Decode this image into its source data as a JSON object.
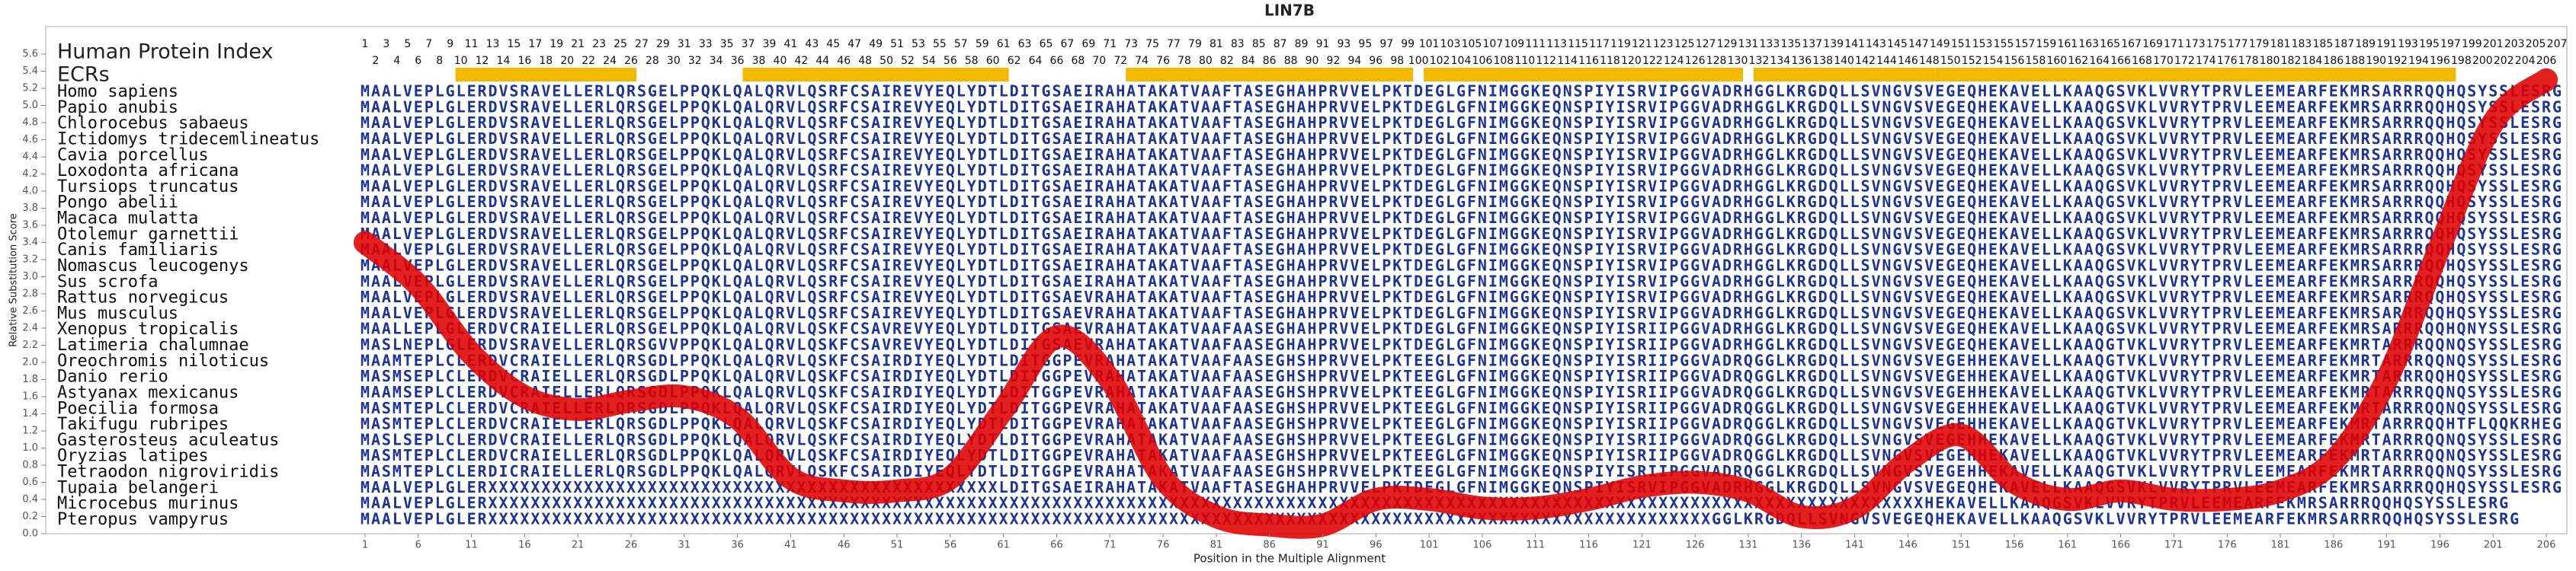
{
  "chart_data": {
    "type": "line",
    "title": "LIN7B",
    "ylabel": "Relative Substitution Score",
    "xlabel": "Position in the Multiple Alignment",
    "index_label": "Human Protein Index",
    "ecr_label": "ECRs",
    "ecr_color": "#f5b800",
    "protein_index": [
      1,
      2,
      3,
      4,
      5,
      6,
      7,
      8,
      9,
      10,
      11,
      12,
      13,
      14,
      15,
      16,
      17,
      18,
      19,
      20,
      21,
      22,
      23,
      24,
      25,
      26,
      27,
      28,
      29,
      30,
      31,
      32,
      33,
      34,
      35,
      36,
      37,
      38,
      39,
      40,
      41,
      42,
      43,
      44,
      45,
      46,
      47,
      48,
      49,
      50,
      51,
      52,
      53,
      54,
      55,
      56,
      57,
      58,
      59,
      60,
      61,
      62,
      63,
      64,
      65,
      66,
      67,
      68,
      69,
      70,
      71,
      72,
      73,
      74,
      75,
      76,
      77,
      78,
      79,
      80,
      81,
      82,
      83,
      84,
      85,
      86,
      87,
      88,
      89,
      90,
      91,
      92,
      93,
      94,
      95,
      96,
      97,
      98,
      99,
      100,
      101,
      102,
      103,
      104,
      105,
      106,
      107,
      108,
      109,
      110,
      111,
      112,
      113,
      114,
      115,
      116,
      117,
      118,
      119,
      120,
      121,
      122,
      123,
      124,
      125,
      126,
      127,
      128,
      129,
      130,
      131,
      132,
      133,
      134,
      135,
      136,
      137,
      138,
      139,
      140,
      141,
      142,
      143,
      144,
      145,
      146,
      147,
      148,
      149,
      150,
      151,
      152,
      153,
      154,
      155,
      156,
      157,
      158,
      159,
      160,
      161,
      162,
      163,
      164,
      165,
      166,
      167,
      168,
      169,
      170,
      171,
      172,
      173,
      174,
      175,
      176,
      177,
      178,
      179,
      180,
      181,
      182,
      183,
      184,
      185,
      186,
      187,
      188,
      189,
      190,
      191,
      192,
      193,
      194,
      195,
      196,
      197,
      198,
      199,
      200,
      201,
      202,
      203,
      204,
      205,
      206,
      207
    ],
    "ecrs": [
      [
        10,
        26
      ],
      [
        37,
        61
      ],
      [
        73,
        99
      ],
      [
        101,
        130
      ],
      [
        132,
        148
      ],
      [
        149,
        197
      ]
    ],
    "species": [
      {
        "name": "Homo sapiens",
        "sequence": "MAALVEPLGLERDVSRAVELLERLQRSGELPPQKLQALQRVLQSRFCSAIREVYEQLYDTLDITGSAEIRAHATAKATVAAFTASEGHAHPRVVELPKTDEGLGFNIMGGKEQNSPIYISRVIPGGVADRHGGLKRGDQLLSVNGVSVEGEQHEKAVELLKAAQGSVKLVVRYTPRVLEEMEARFEKMRSARRRQQHQSYSSLESRG"
      },
      {
        "name": "Papio anubis",
        "sequence": "MAALVEPLGLERDVSRAVELLERLQRSGELPPQKLQALQRVLQSRFCSAIREVYEQLYDTLDITGSAEIRAHATAKATVAAFTASEGHAHPRVVELPKTDEGLGFNIMGGKEQNSPIYISRVIPGGVADRHGGLKRGDQLLSVNGVSVEGEQHEKAVELLKAAQGSVKLVVRYTPRVLEEMEARFEKMRSARRRQQHQSYSSLESRG"
      },
      {
        "name": "Chlorocebus sabaeus",
        "sequence": "MAALVEPLGLERDVSRAVELLERLQRSGELPPQKLQALQRVLQSRFCSAIREVYEQLYDTLDITGSAEIRAHATAKATVAAFTASEGHAHPRVVELPKTDEGLGFNIMGGKEQNSPIYISRVIPGGVADRHGGLKRGDQLLSVNGVSVEGEQHEKAVELLKAAQGSVKLVVRYTPRVLEEMEARFEKMRSARRRQQHQSYSSLESRG"
      },
      {
        "name": "Ictidomys tridecemlineatus",
        "sequence": "MAALVEPLGLERDVSRAVELLERLQRSGELPPQKLQALQRVLQSRFCSAIREVYEQLYDTLDITGSAEIRAHATAKATVAAFTASEGHAHPRVVELPKTDEGLGFNIMGGKEQNSPIYISRVIPGGVADRHGGLKRGDQLLSVNGVSVEGEQHEKAVELLKAAQGSVKLVVRYTPRVLEEMEARFEKMRSARRRQQHQSYSSLESRG"
      },
      {
        "name": "Cavia porcellus",
        "sequence": "MAALVEPLGLERDVSRAVELLERLQRSGELPPQKLQALQRVLQSRFCSAIREVYEQLYDTLDITGSAEIRAHATAKATVAAFTASEGHAHPRVVELPKTDEGLGFNIMGGKEQNSPIYISRVIPGGVADRHGGLKRGDQLLSVNGVSVEGEQHEKAVELLKAAQGSVKLVVRYTPRVLEEMEARFEKMRSARRRQQHQSYSSLESRG"
      },
      {
        "name": "Loxodonta africana",
        "sequence": "MAALVEPLGLERDVSRAVELLERLQRSGELPPQKLQALQRVLQSRFCSAIREVYEQLYDTLDITGSAEIRAHATAKATVAAFTASEGHAHPRVVELPKTDEGLGFNIMGGKEQNSPIYISRVIPGGVADRHGGLKRGDQLLSVNGVSVEGEQHEKAVELLKAAQGSVKLVVRYTPRVLEEMEARFEKMRSARRRQQHQSYSSLESRG"
      },
      {
        "name": "Tursiops truncatus",
        "sequence": "MAALVEPLGLERDVSRAVELLERLQRSGELPPQKLQALQRVLQSRFCSAIREVYEQLYDTLDITGSAEIRAHATAKATVAAFTASEGHAHPRVVELPKTDEGLGFNIMGGKEQNSPIYISRVIPGGVADRHGGLKRGDQLLSVNGVSVEGEQHEKAVELLKAAQGSVKLVVRYTPRVLEEMEARFEKMRSARRRQQHQSYSSLESRG"
      },
      {
        "name": "Pongo abelii",
        "sequence": "MAALVEPLGLERDVSRAVELLERLQRSGELPPQKLQALQRVLQSRFCSAIREVYEQLYDTLDITGSAEIRAHATAKATVAAFTASEGHAHPRVVELPKTDEGLGFNIMGGKEQNSPIYISRVIPGGVADRHGGLKRGDQLLSVNGVSVEGEQHEKAVELLKAAQGSVKLVVRYTPRVLEEMEARFEKMRSARRRQQHQSYSSLESRG"
      },
      {
        "name": "Macaca mulatta",
        "sequence": "MAALVEPLGLERDVSRAVELLERLQRSGELPPQKLQALQRVLQSRFCSAIREVYEQLYDTLDITGSAEIRAHATAKATVAAFTASEGHAHPRVVELPKTDEGLGFNIMGGKEQNSPIYISRVIPGGVADRHGGLKRGDQLLSVNGVSVEGEQHEKAVELLKAAQGSVKLVVRYTPRVLEEMEARFEKMRSARRRQQHQSYSSLESRG"
      },
      {
        "name": "Otolemur garnettii",
        "sequence": "MAALVEPLGLERDVSRAVELLERLQRSGELPPQKLQALQRVLQSRFCSAIREVYEQLYDTLDITGSAEIRAHATAKATVAAFTASEGHAHPRVVELPKTDEGLGFNIMGGKEQNSPIYISRVIPGGVADRHGGLKRGDQLLSVNGVSVEGEQHEKAVELLKAAQGSVKLVVRYTPRVLEEMEARFEKMRSARRRQQHQSYSSLESRG"
      },
      {
        "name": "Canis familiaris",
        "sequence": "MAALVEPLGLERDVSRAVELLERLQRSGELPPQKLQALQRVLQSRFCSAIREVYEQLYDTLDITGSAEIRAHATAKATVAAFTASEGHAHPRVVELPKTDEGLGFNIMGGKEQNSPIYISRVIPGGVADRHGGLKRGDQLLSVNGVSVEGEQHEKAVELLKAAQGSVKLVVRYTPRVLEEMEARFEKMRSARRRQQHQSYSSLESRG"
      },
      {
        "name": "Nomascus leucogenys",
        "sequence": "MAALVEPLGLERDVSRAVELLERLQRSGELPPQKLQALQRVLQSRFCSAIREVYEQLYDTLDITGSAEIRAHATAKATVAAFTASEGHAHPRVVELPKTDEGLGFNIMGGKEQNSPIYISRVIPGGVADRHGGLKRGDQLLSVNGVSVEGEQHEKAVELLKAAQGSVKLVVRYTPRVLEEMEARFEKMRSARRRQQHQSYSSLESRG"
      },
      {
        "name": "Sus scrofa",
        "sequence": "MAALVEPLGLERDVSRAVELLERLQRSGELPPQKLQALQRVLQSRFCSAIREVYEQLYDTLDITGSAEIRAHATAKATVAAFTASEGHAHPRVVELPKTDEGLGFNIMGGKEQNSPIYISRVIPGGVADRHGGLKRGDQLLSVNGVSVEGEQHEKAVELLKAAQGSVKLVVRYTPRVLEEMEARFEKMRSARRRQQHQSYSSLESRG"
      },
      {
        "name": "Rattus norvegicus",
        "sequence": "MAALVEPLGLERDVSRAVELLERLQRSGELPPQKLQALQRVLQSRFCSAIREVYEQLYDTLDITGSAEVRAHATAKATVAAFTASEGHAHPRVVELPKTDEGLGFNIMGGKEQNSPIYISRVIPGGVADRHGGLKRGDQLLSVNGVSVEGEQHEKAVELLKAAQGSVKLVVRYTPRVLEEMEARFEKMRSARRRQQHQSYSSLESRG"
      },
      {
        "name": "Mus musculus",
        "sequence": "MAALVEPLGLERDVSRAVELLERLQRSGELPPQKLQALQRVLQSRFCSAIREVYEQLYDTLDITGSAEVRAHATAKATVAAFTASEGHAHPRVVELPKTDEGLGFNIMGGKEQNSPIYISRVIPGGVADRHGGLKRGDQLLSVNGVSVEGEQHEKAVELLKAAQGSVKLVVRYTPRVLEEMEARFEKMRSARRRQQHQSYSSLESRG"
      },
      {
        "name": "Xenopus tropicalis",
        "sequence": "MAALLEPLGLERDVCRAIELLERLQRSGELPPQKLQALQRVLQSKFCSAVREVYEQLYDTLDITGSAEVRAHATAKATVAAFAASEGHAHPRVVELPKTDEGLGFNIMGGKEQNSPIYISRIIPGGVADRHGGLKRGDQLLSVNGVSVEGEQHEKAVELLKAAQGSVKLVVRYTPRVLEEMEARFEKMRSARRRQQHQNYSSLESRG"
      },
      {
        "name": "Latimeria chalumnae",
        "sequence": "MASLNEPLGLERDVSRAVELLERLQRSGVVPPQKLQALQRVLQSKFCSAVREVYEQLYDTLDITGSAEVRAHATAKATVAAFAASEGHAHPRVVELPKTDEGLGFNIMGGKEQNSPIYISRIIPGGVADRHGGLKRGDQLLSVNGVSVEGEQHEKAVELLKAAQGTVKLVVRYTPRVLEEMEARFEKMRTARRRQQNQSYSSLESRG"
      },
      {
        "name": "Oreochromis niloticus",
        "sequence": "MAAMTEPLCLERDVCRAIELLERLQRSGDLPPQKLQALQRVLQSKFCSAIRDIYEQLYDTLDITGGPEVRAHATAKATVAAFAASEGHSHPRVVELPKTEEGLGFNIMGGKEQNSPIYISRIIPGGVADRQGGLKRGDQLLSVNGVSVEGEHHEKAVELLKAAQGTVKLVVRYTPRVLEEMEARFEKMRTARRRQQNQSYSSLESRG"
      },
      {
        "name": "Danio rerio",
        "sequence": "MASMSEPLCLERDVCRAIELLERLQRSGDLPPQKLQALQRVLQSKFCSAIRDIYEQLYDTLDITGGPEVRAHATAKATVAAFAASEGHSHPRVVELPKTEEGLGFNIMGGKEQNSPIYISRIIPGGVADRQGGLKRGDQLLSVNGVSVEGEHHEKAVELLKAAQGTVKLVVRYTPRVLEEMEARFEKMRTARRRQQHQSYSSLESRG"
      },
      {
        "name": "Astyanax mexicanus",
        "sequence": "MAAMSEPLCLERDVCRAIELLERLQRSGDLPPQKLQALQRVLQSKFCSAIRDIYEQLYDTLDITGGPEVRAHATAKATVAAFAASEGHSHPRVVELPKTEEGLGFNIMGGKEQNSPIYISRIIPGGVADRQGGLKRGDQLLSVNGVSVEGEHHEKAVELLKAAQGTVKLVVRYTPRVLEEMEARFEKMRTARRRQQNQSYSSLESRG"
      },
      {
        "name": "Poecilia formosa",
        "sequence": "MASMTEPLCLERDVCRAIELLERLQRSGDLPPQKLQALQRVLQSKFCSAIRDIYEQLYDTLDITGGPEVRAHATAKATVAAFAASEGHSHPRVVELPKTEEGLGFNIMGGKEQNSPIYISRIIPGGVADRQGGLKRGDQLLSVNGVSVEGEHHEKAVELLKAAQGTVKLVVRYTPRVLEEMEARFEKMRTARRRQQNQSYSSLESRG"
      },
      {
        "name": "Takifugu rubripes",
        "sequence": "MASMTEPLCLERDVCRAIELLERLQRSGDLPPQKLQALQRVLQSKFCSAIRDIYEQLYDTLDITGGPEVRAHATAKATVAAFAASEGHSHPRVVELPKTEEGLGFNIMGGKEQNSPIYISRIIPGGVADRQGGLKRGDQLLSVNGVSVEGEHHEKAVELLKAAQGTVKLVVRYTPRVLEEMEARFEKMRTARRRQQHTFLQQKRHEG"
      },
      {
        "name": "Gasterosteus aculeatus",
        "sequence": "MASLSEPLCLERDVCRAIELLERLQRSGDLPPQKLQALQRVLQSKFCSAIRDIYEQLYDTLDITGGPEVRAHATAKATVAAFAASEGHSHPRVVELPKTEEGLGFNIMGGKEQNSPIYISRIIPGGVADRQGGLKRGDQLLSVNGVSVEGEHHEKAVELLKAAQGTVKLVVRYTPRVLEEMEARFEKMRTARRRQQNQSYSSLESRG"
      },
      {
        "name": "Oryzias latipes",
        "sequence": "MASMTEPLCLERDVCRAIELLERLQRSGDLPPQKLQALQRVLQSKFCSAIRDIYEQLYDTLDITGGPEVRAHATAKATVAAFAASEGHSHPRVVELPKTEEGLGFNIMGGKEQNSPIYISRIIPGGVADRQGGLKRGDQLLSVNGVSVEGEHHEKAVELLKAAQGTVKLVVRYTPRVLEEMEARFEKMRTARRRQQNQSYSSLESRG"
      },
      {
        "name": "Tetraodon nigroviridis",
        "sequence": "MASMTEPLCLERDICRAIELLERLQRSGDLPPQKLQALQRVLQSKFCSAIRDIYEQLYDTLDITGGPEVRAHATAKATVAAFAASEGHSHPRVVELPKTEEGLGFNIMGGKEQNSPIYISRIIPGGVADRQGGLKRGDQLLSVNGVSVEGEHHEKAVELLKAAQGTVKLVVRYTPRVLEEMEARFEKMRTARRRQQNQSYSSLESRG"
      },
      {
        "name": "Tupaia belangeri",
        "sequence": "MAALVEPLGLERXXXXXXXXXXXXXXXXXXXXXXXXXXXXXXXXXXXXXXXXXXXXXXXXLDITGSAEIRAHATAKATVAAFTASEGHAHPRVVELPKTDEGLGFNIMGGKEQNSPIYISRVIPGGVADRHGGLKRGDQLLSVNGVSVEGEQHEKAVELLKAAQGSVKLVVRYTPRVLEEMEARFEKMRSARRRQQHQSYSSLESRG"
      },
      {
        "name": "Microcebus murinus",
        "sequence": "MAALVEPLGLERXXXXXXXXXXXXXXXXXXXXXXXXXXXXXXXXXXXXXXXXXXXXXXXXXXXXXXXXXXXXXXXXXXXXXXXXXXXXXXXXXXXXXXXXXXXXXXXXXXXXXXXXXXXXXXXXXXXXXXXXXXXXXXXXXXXXXXXHEKAVELLKAAQGSVKLVVRYTPRVLEEMEARFEKMRSARRRQQHQSYSSLESRG"
      },
      {
        "name": "Pteropus vampyrus",
        "sequence": "MAALVEPLGLERXXXXXXXXXXXXXXXXXXXXXXXXXXXXXXXXXXXXXXXXXXXXXXXXXXXXXXXXXXXXXXXXXXXXXXXXXXXXXXXXXXXXXXXXXXXXXXXXXXXXXXXXXXXXXXXXXXXGGLKRGDQLLSVNGVSVEGEQHEKAVELLKAAQGSVKLVVRYTPRVLEEMEARFEKMRSARRRQQHQSYSSLESRG"
      }
    ],
    "series": [
      {
        "color": "#e00000",
        "x": [
          1,
          6,
          11,
          16,
          21,
          26,
          31,
          36,
          41,
          46,
          51,
          56,
          61,
          66,
          71,
          76,
          81,
          86,
          91,
          96,
          101,
          106,
          111,
          116,
          121,
          126,
          131,
          136,
          141,
          146,
          151,
          156,
          161,
          166,
          171,
          176,
          181,
          186,
          191,
          196,
          201,
          206
        ],
        "values": [
          3.4,
          2.9,
          2.1,
          1.6,
          1.45,
          1.55,
          1.6,
          1.35,
          0.65,
          0.5,
          0.5,
          0.65,
          1.45,
          2.3,
          1.8,
          0.65,
          0.2,
          0.1,
          0.1,
          0.4,
          0.4,
          0.3,
          0.3,
          0.4,
          0.55,
          0.6,
          0.5,
          0.2,
          0.3,
          0.85,
          1.15,
          0.6,
          0.4,
          0.5,
          0.4,
          0.4,
          0.5,
          0.85,
          1.8,
          3.35,
          4.8,
          5.3
        ]
      }
    ],
    "xlim": [
      0,
      208
    ],
    "xticks": [
      1,
      6,
      11,
      16,
      21,
      26,
      31,
      36,
      41,
      46,
      51,
      56,
      61,
      66,
      71,
      76,
      81,
      86,
      91,
      96,
      101,
      106,
      111,
      116,
      121,
      126,
      131,
      136,
      141,
      146,
      151,
      156,
      161,
      166,
      171,
      176,
      181,
      186,
      191,
      196,
      201,
      206
    ],
    "ylim": [
      0,
      5.6
    ],
    "yticks": [
      {
        "value": 0,
        "label": "0.0"
      },
      0.2,
      0.4,
      0.6,
      0.8,
      {
        "value": 1,
        "label": "1.0"
      },
      1.2,
      1.4,
      1.6,
      1.8,
      {
        "value": 2,
        "label": "2.0"
      },
      2.2,
      2.4,
      2.6,
      2.8,
      {
        "value": 3,
        "label": "3.0"
      },
      3.2,
      3.4,
      3.6,
      3.8,
      {
        "value": 4,
        "label": "4.0"
      },
      4.2,
      4.4,
      4.6,
      4.8,
      {
        "value": 5,
        "label": "5.0"
      },
      5.2,
      5.4,
      5.6
    ]
  }
}
